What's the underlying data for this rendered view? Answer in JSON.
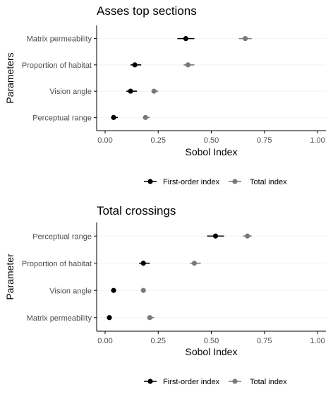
{
  "legend": {
    "first_order_label": "First-order index",
    "total_label": "Total index"
  },
  "colors": {
    "first_order": "#000000",
    "total": "#7a7a7a",
    "axis": "#000000",
    "grid": "#f2f2f2",
    "tick_text": "#4d4d4d",
    "title_text": "#000000"
  },
  "chart_data": [
    {
      "type": "scatter",
      "title": "Asses top sections",
      "xlabel": "Sobol Index",
      "ylabel": "Parameters",
      "xlim": [
        0,
        1
      ],
      "x_ticks": [
        "0.00",
        "0.25",
        "0.50",
        "0.75",
        "1.00"
      ],
      "x_tick_values": [
        0,
        0.25,
        0.5,
        0.75,
        1.0
      ],
      "categories": [
        "Matrix permeability",
        "Proportion of habitat",
        "Vision angle",
        "Perceptual range"
      ],
      "legend_position": "bottom",
      "grid": true,
      "series": [
        {
          "name": "First-order index",
          "values": [
            0.38,
            0.14,
            0.12,
            0.04
          ],
          "err_low": [
            0.34,
            0.12,
            0.1,
            0.03
          ],
          "err_high": [
            0.42,
            0.17,
            0.15,
            0.06
          ]
        },
        {
          "name": "Total index",
          "values": [
            0.66,
            0.39,
            0.23,
            0.19
          ],
          "err_low": [
            0.63,
            0.37,
            0.22,
            0.18
          ],
          "err_high": [
            0.69,
            0.42,
            0.25,
            0.21
          ]
        }
      ]
    },
    {
      "type": "scatter",
      "title": "Total crossings",
      "xlabel": "Sobol Index",
      "ylabel": "Parameter",
      "xlim": [
        0,
        1
      ],
      "x_ticks": [
        "0.00",
        "0.25",
        "0.50",
        "0.75",
        "1.00"
      ],
      "x_tick_values": [
        0,
        0.25,
        0.5,
        0.75,
        1.0
      ],
      "categories": [
        "Perceptual range",
        "Proportion of habitat",
        "Vision angle",
        "Matrix permeability"
      ],
      "legend_position": "bottom",
      "grid": true,
      "series": [
        {
          "name": "First-order index",
          "values": [
            0.52,
            0.18,
            0.04,
            0.02
          ],
          "err_low": [
            0.48,
            0.16,
            0.03,
            0.01
          ],
          "err_high": [
            0.56,
            0.21,
            0.05,
            0.03
          ]
        },
        {
          "name": "Total index",
          "values": [
            0.67,
            0.42,
            0.18,
            0.21
          ],
          "err_low": [
            0.65,
            0.4,
            0.17,
            0.2
          ],
          "err_high": [
            0.69,
            0.45,
            0.19,
            0.23
          ]
        }
      ]
    }
  ]
}
